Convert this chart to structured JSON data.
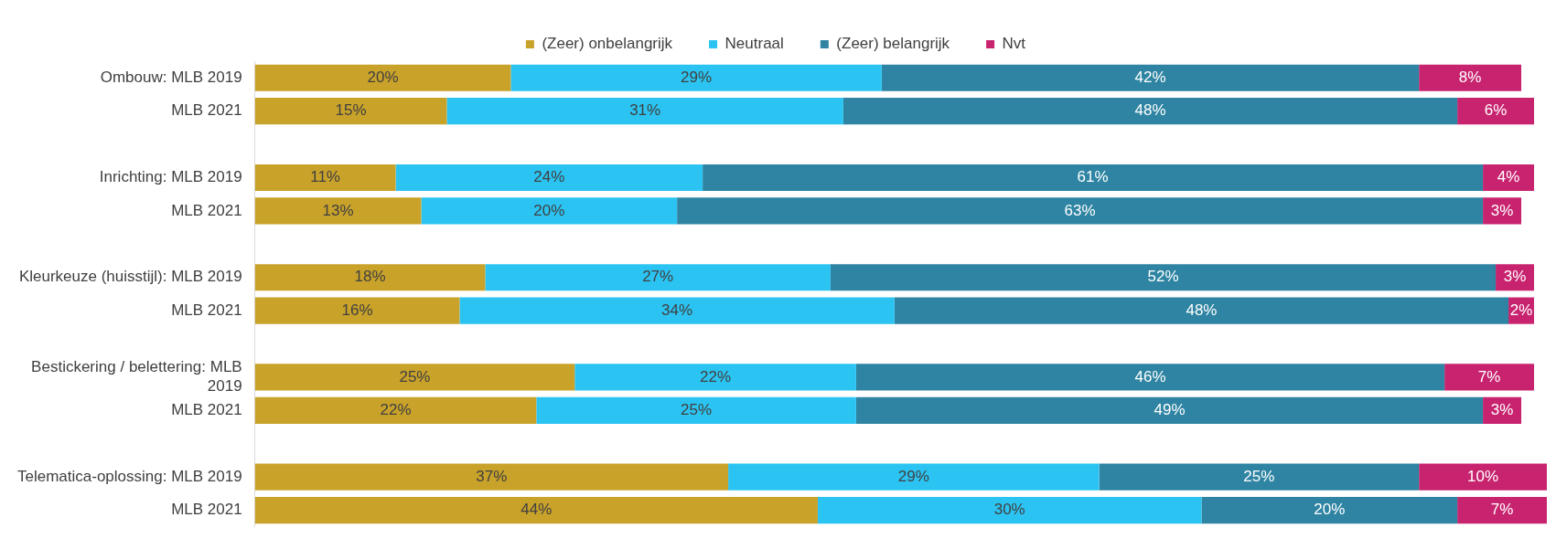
{
  "chart_data": {
    "type": "bar",
    "orientation": "horizontal",
    "stacked": true,
    "legend": "top",
    "xlim": [
      0,
      101
    ],
    "categories": [
      "Ombouw: MLB 2019",
      "MLB 2021",
      null,
      "Inrichting: MLB 2019",
      "MLB 2021",
      null,
      "Kleurkeuze (huisstijl): MLB 2019",
      "MLB 2021",
      null,
      "Bestickering / belettering: MLB 2019",
      "MLB 2021",
      null,
      "Telematica-oplossing: MLB 2019",
      "MLB 2021"
    ],
    "series": [
      {
        "name": "(Zeer) onbelangrijk",
        "color": "#c9a22a",
        "values": [
          20,
          15,
          null,
          11,
          13,
          null,
          18,
          16,
          null,
          25,
          22,
          null,
          37,
          44
        ],
        "value_labels": [
          "20%",
          "15%",
          null,
          "11%",
          "13%",
          null,
          "18%",
          "16%",
          null,
          "25%",
          "22%",
          null,
          "37%",
          "44%"
        ]
      },
      {
        "name": "Neutraal",
        "color": "#2bc4f2",
        "values": [
          29,
          31,
          null,
          24,
          20,
          null,
          27,
          34,
          null,
          22,
          25,
          null,
          29,
          30
        ],
        "value_labels": [
          "29%",
          "31%",
          null,
          "24%",
          "20%",
          null,
          "27%",
          "34%",
          null,
          "22%",
          "25%",
          null,
          "29%",
          "30%"
        ]
      },
      {
        "name": "(Zeer) belangrijk",
        "color": "#2e84a2",
        "values": [
          42,
          48,
          null,
          61,
          63,
          null,
          52,
          48,
          null,
          46,
          49,
          null,
          25,
          20
        ],
        "value_labels": [
          "42%",
          "48%",
          null,
          "61%",
          "63%",
          null,
          "52%",
          "48%",
          null,
          "46%",
          "49%",
          null,
          "25%",
          "20%"
        ]
      },
      {
        "name": "Nvt",
        "color": "#c8236f",
        "values": [
          8,
          6,
          null,
          4,
          3,
          null,
          3,
          2,
          null,
          7,
          3,
          null,
          10,
          7
        ],
        "value_labels": [
          "8%",
          "6%",
          null,
          "4%",
          "3%",
          null,
          "3%",
          "2%",
          null,
          "7%",
          "3%",
          null,
          "10%",
          "7%"
        ]
      }
    ]
  }
}
